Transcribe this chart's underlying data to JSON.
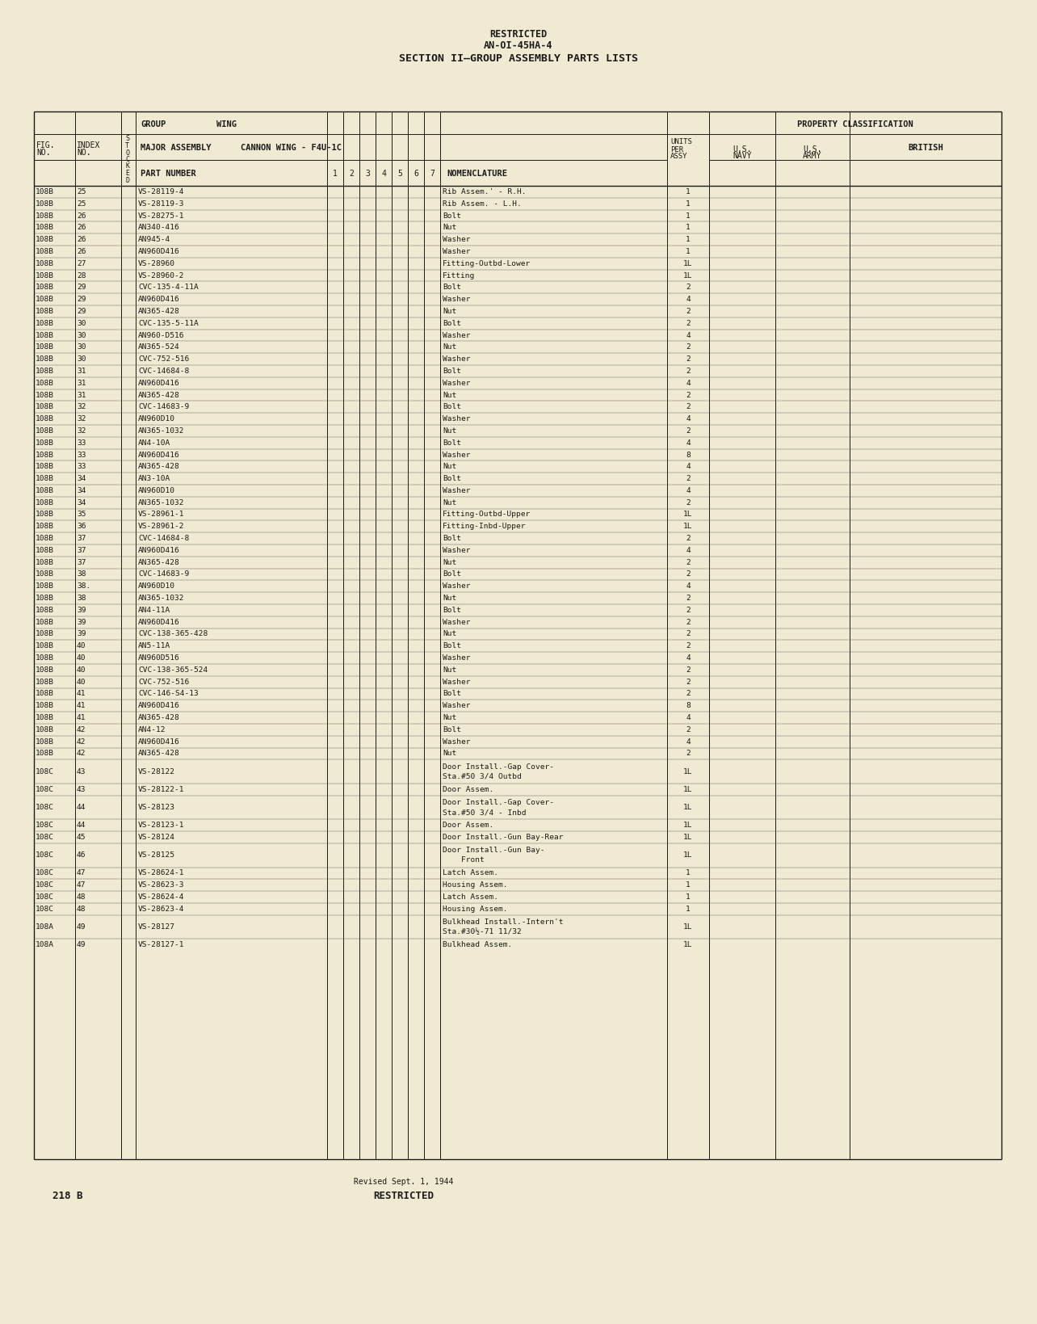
{
  "bg_color": "#f0ead2",
  "title_restricted": "RESTRICTED",
  "title_doc": "AN-OI-45HA-4",
  "title_section": "SECTION II—GROUP ASSEMBLY PARTS LISTS",
  "rows": [
    [
      "108B",
      "25",
      "VS-28119-4",
      "Rib Assem.' - R.H.",
      "1"
    ],
    [
      "108B",
      "25",
      "VS-28119-3",
      "Rib Assem. - L.H.",
      "1"
    ],
    [
      "108B",
      "26",
      "VS-28275-1",
      "Bolt",
      "1"
    ],
    [
      "108B",
      "26",
      "AN340-416",
      "Nut",
      "1"
    ],
    [
      "108B",
      "26",
      "AN945-4",
      "Washer",
      "1"
    ],
    [
      "108B",
      "26",
      "AN960D416",
      "Washer",
      "1"
    ],
    [
      "108B",
      "27",
      "VS-28960",
      "Fitting-Outbd-Lower",
      "1L"
    ],
    [
      "108B",
      "28",
      "VS-28960-2",
      "Fitting",
      "1L"
    ],
    [
      "108B",
      "29",
      "CVC-135-4-11A",
      "Bolt",
      "2"
    ],
    [
      "108B",
      "29",
      "AN960D416",
      "Washer",
      "4"
    ],
    [
      "108B",
      "29",
      "AN365-428",
      "Nut",
      "2"
    ],
    [
      "108B",
      "30",
      "CVC-135-5-11A",
      "Bolt",
      "2"
    ],
    [
      "108B",
      "30",
      "AN960-D516",
      "Washer",
      "4"
    ],
    [
      "108B",
      "30",
      "AN365-524",
      "Nut",
      "2"
    ],
    [
      "108B",
      "30",
      "CVC-752-516",
      "Washer",
      "2"
    ],
    [
      "108B",
      "31",
      "CVC-14684-8",
      "Bolt",
      "2"
    ],
    [
      "108B",
      "31",
      "AN960D416",
      "Washer",
      "4"
    ],
    [
      "108B",
      "31",
      "AN365-428",
      "Nut",
      "2"
    ],
    [
      "108B",
      "32",
      "CVC-14683-9",
      "Bolt",
      "2"
    ],
    [
      "108B",
      "32",
      "AN960D10",
      "Washer",
      "4"
    ],
    [
      "108B",
      "32",
      "AN365-1032",
      "Nut",
      "2"
    ],
    [
      "108B",
      "33",
      "AN4-10A",
      "Bolt",
      "4"
    ],
    [
      "108B",
      "33",
      "AN960D416",
      "Washer",
      "8"
    ],
    [
      "108B",
      "33",
      "AN365-428",
      "Nut",
      "4"
    ],
    [
      "108B",
      "34",
      "AN3-10A",
      "Bolt",
      "2"
    ],
    [
      "108B",
      "34",
      "AN960D10",
      "Washer",
      "4"
    ],
    [
      "108B",
      "34",
      "AN365-1032",
      "Nut",
      "2"
    ],
    [
      "108B",
      "35",
      "VS-28961-1",
      "Fitting-Outbd-Upper",
      "1L"
    ],
    [
      "108B",
      "36",
      "VS-28961-2",
      "Fitting-Inbd-Upper",
      "1L"
    ],
    [
      "108B",
      "37",
      "CVC-14684-8",
      "Bolt",
      "2"
    ],
    [
      "108B",
      "37",
      "AN960D416",
      "Washer",
      "4"
    ],
    [
      "108B",
      "37",
      "AN365-428",
      "Nut",
      "2"
    ],
    [
      "108B",
      "38",
      "CVC-14683-9",
      "Bolt",
      "2"
    ],
    [
      "108B",
      "38.",
      "AN960D10",
      "Washer",
      "4"
    ],
    [
      "108B",
      "38",
      "AN365-1032",
      "Nut",
      "2"
    ],
    [
      "108B",
      "39",
      "AN4-11A",
      "Bolt",
      "2"
    ],
    [
      "108B",
      "39",
      "AN960D416",
      "Washer",
      "2"
    ],
    [
      "108B",
      "39",
      "CVC-138-365-428",
      "Nut",
      "2"
    ],
    [
      "108B",
      "40",
      "AN5-11A",
      "Bolt",
      "2"
    ],
    [
      "108B",
      "40",
      "AN960D516",
      "Washer",
      "4"
    ],
    [
      "108B",
      "40",
      "CVC-138-365-524",
      "Nut",
      "2"
    ],
    [
      "108B",
      "40",
      "CVC-752-516",
      "Washer",
      "2"
    ],
    [
      "108B",
      "41",
      "CVC-146-S4-13",
      "Bolt",
      "2"
    ],
    [
      "108B",
      "41",
      "AN960D416",
      "Washer",
      "8"
    ],
    [
      "108B",
      "41",
      "AN365-428",
      "Nut",
      "4"
    ],
    [
      "108B",
      "42",
      "AN4-12",
      "Bolt",
      "2"
    ],
    [
      "108B",
      "42",
      "AN960D416",
      "Washer",
      "4"
    ],
    [
      "108B",
      "42",
      "AN365-428",
      "Nut",
      "2"
    ],
    [
      "108C",
      "43",
      "VS-28122",
      "Door Install.-Gap Cover-\nSta.#50 3/4 Outbd",
      "1L"
    ],
    [
      "108C",
      "43",
      "VS-28122-1",
      "Door Assem.",
      "1L"
    ],
    [
      "108C",
      "44",
      "VS-28123",
      "Door Install.-Gap Cover-\nSta.#50 3/4 - Inbd",
      "1L"
    ],
    [
      "108C",
      "44",
      "VS-28123-1",
      "Door Assem.",
      "1L"
    ],
    [
      "108C",
      "45",
      "VS-28124",
      "Door Install.-Gun Bay-Rear",
      "1L"
    ],
    [
      "108C",
      "46",
      "VS-28125",
      "Door Install.-Gun Bay-\n    Front",
      "1L"
    ],
    [
      "108C",
      "47",
      "VS-28624-1",
      "Latch Assem.",
      "1"
    ],
    [
      "108C",
      "47",
      "VS-28623-3",
      "Housing Assem.",
      "1"
    ],
    [
      "108C",
      "48",
      "VS-28624-4",
      "Latch Assem.",
      "1"
    ],
    [
      "108C",
      "48",
      "VS-28623-4",
      "Housing Assem.",
      "1"
    ],
    [
      "108A",
      "49",
      "VS-28127",
      "Bulkhead Install.-Intern't\nSta.#30½-71 11/32",
      "1L"
    ],
    [
      "108A",
      "49",
      "VS-28127-1",
      "Bulkhead Assem.",
      "1L"
    ]
  ],
  "footer_revised": "Revised Sept. 1, 1944",
  "footer_restricted": "RESTRICTED",
  "page_number": "218 B"
}
